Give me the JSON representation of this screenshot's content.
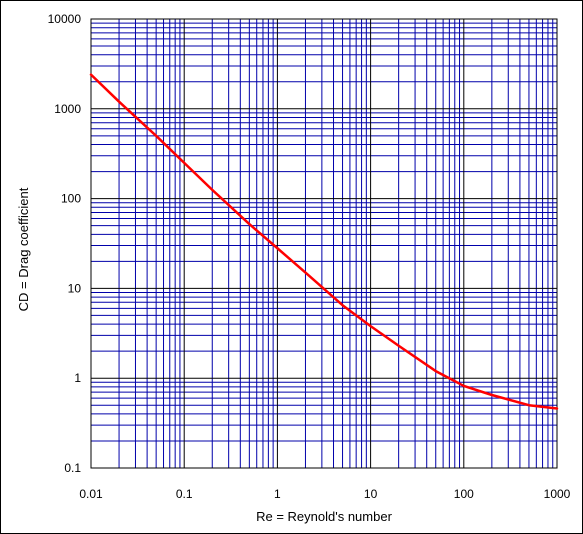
{
  "chart_data": {
    "type": "line",
    "title": "",
    "xlabel": "Re = Reynold's number",
    "ylabel": "CD = Drag coefficient",
    "x_scale": "log",
    "y_scale": "log",
    "xlim": [
      0.01,
      1000
    ],
    "ylim": [
      0.1,
      10000
    ],
    "grid": true,
    "legend": "none",
    "x_ticks": [
      "0.01",
      "0.1",
      "1",
      "10",
      "100",
      "1000"
    ],
    "y_ticks": [
      "10000",
      "1000",
      "100",
      "10",
      "1",
      "0.1"
    ],
    "series": [
      {
        "color": "#ff0000",
        "x": [
          0.01,
          0.02,
          0.05,
          0.1,
          0.2,
          0.5,
          1,
          2,
          5,
          10,
          20,
          50,
          100,
          200,
          500,
          1000
        ],
        "y": [
          2400,
          1200,
          500,
          250,
          125,
          52,
          28,
          15,
          6.5,
          3.8,
          2.3,
          1.2,
          0.82,
          0.65,
          0.5,
          0.46
        ]
      }
    ]
  },
  "colors": {
    "grid_blue": "#0000aa",
    "grid_black": "#000000",
    "curve": "#ff0000",
    "background": "#ffffff"
  }
}
